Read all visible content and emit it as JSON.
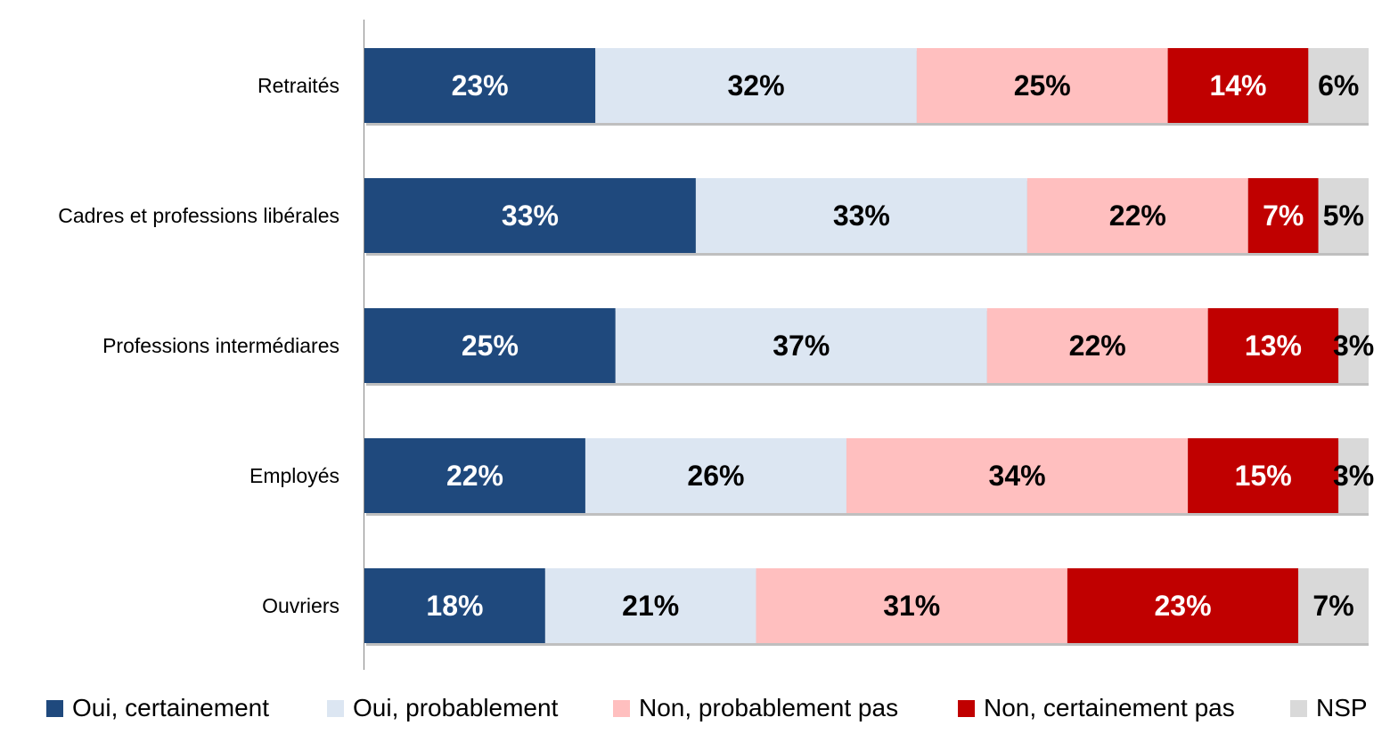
{
  "chart_data": {
    "type": "bar",
    "orientation": "horizontal",
    "stacked": true,
    "categories": [
      "Retraités",
      "Cadres et professions libérales",
      "Professions intermédiares",
      "Employés",
      "Ouvriers"
    ],
    "series": [
      {
        "name": "Oui, certainement",
        "color": "#1f497d",
        "label_color": "#ffffff",
        "values": [
          23,
          33,
          25,
          22,
          18
        ]
      },
      {
        "name": "Oui, probablement",
        "color": "#dce6f2",
        "label_color": "#000000",
        "values": [
          32,
          33,
          37,
          26,
          21
        ]
      },
      {
        "name": "Non, probablement  pas",
        "color": "#ffbfbf",
        "label_color": "#000000",
        "values": [
          25,
          22,
          22,
          34,
          31
        ]
      },
      {
        "name": "Non, certainement  pas",
        "color": "#c00000",
        "label_color": "#ffffff",
        "values": [
          14,
          7,
          13,
          15,
          23
        ]
      },
      {
        "name": "NSP",
        "color": "#d9d9d9",
        "label_color": "#000000",
        "values": [
          6,
          5,
          3,
          3,
          7
        ]
      }
    ],
    "value_suffix": "%",
    "legend_position": "bottom",
    "grid": false
  }
}
